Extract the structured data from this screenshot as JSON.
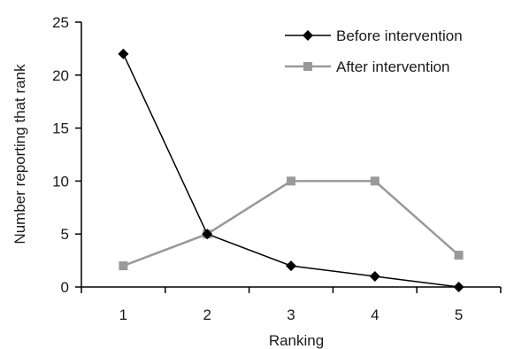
{
  "chart_data": {
    "type": "line",
    "title": "",
    "xlabel": "Ranking",
    "ylabel": "Number reporting that rank",
    "x": [
      1,
      2,
      3,
      4,
      5
    ],
    "xticks": [
      "1",
      "2",
      "3",
      "4",
      "5"
    ],
    "xlim": [
      0.5,
      5.5
    ],
    "ylim": [
      0,
      25
    ],
    "yticks": [
      "0",
      "5",
      "10",
      "15",
      "20",
      "25"
    ],
    "grid": false,
    "legend_position": "top-right",
    "series": [
      {
        "name": "Before intervention",
        "values": [
          22,
          5,
          2,
          1,
          0
        ],
        "marker": "diamond",
        "color": "#000000"
      },
      {
        "name": "After intervention",
        "values": [
          2,
          5,
          10,
          10,
          3
        ],
        "marker": "square",
        "color": "#999999"
      }
    ]
  }
}
